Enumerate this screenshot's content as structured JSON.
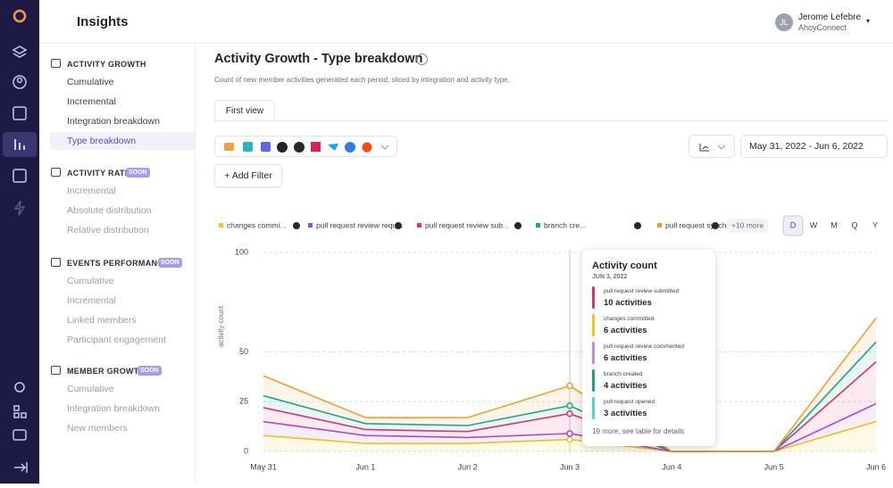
{
  "header": {
    "title": "Insights",
    "user": {
      "initials": "JL",
      "name": "Jerome Lefebre",
      "org": "AhoyConnect"
    }
  },
  "sidebar": {
    "sections": [
      {
        "title": "ACTIVITY GROWTH",
        "items": [
          "Cumulative",
          "Incremental",
          "Integration breakdown",
          "Type breakdown"
        ]
      },
      {
        "title": "ACTIVITY RATE",
        "badge": "SOON",
        "items": [
          "Incremental",
          "Absolute distribution",
          "Relative distribution"
        ]
      },
      {
        "title": "EVENTS PERFORMANCE",
        "badge": "SOON",
        "items": [
          "Cumulative",
          "Incremental",
          "Linked members",
          "Participant engagement"
        ]
      },
      {
        "title": "MEMBER GROWTH",
        "badge": "SOON",
        "items": [
          "Cumulative",
          "Integration breakdown",
          "New members"
        ]
      }
    ]
  },
  "page": {
    "title": "Activity Growth - Type breakdown",
    "subtitle": "Count of new member activities generated each period, sliced by integration and activity type.",
    "tab": "First view",
    "add_filter": "+ Add Filter",
    "date_range": "May 31, 2022 - Jun 6, 2022",
    "periods": [
      "D",
      "W",
      "M",
      "Q",
      "Y"
    ]
  },
  "chart_data": {
    "type": "line",
    "stacked": true,
    "y_label": "activity count",
    "more_label": "+10 more",
    "categories": [
      "May 31",
      "Jun 1",
      "Jun 2",
      "Jun 3",
      "Jun 4",
      "Jun 5",
      "Jun 6"
    ],
    "series": [
      {
        "name": "changes commi...",
        "color": "#f5c518",
        "values": [
          8,
          4,
          4,
          6,
          0,
          0,
          15
        ]
      },
      {
        "name": "pull request review requ...",
        "color": "#a64bd6",
        "values": [
          7,
          4,
          3,
          3,
          0,
          0,
          9
        ]
      },
      {
        "name": "pull request review sub...",
        "color": "#e0306e",
        "values": [
          7,
          3,
          3,
          10,
          0,
          0,
          21
        ]
      },
      {
        "name": "branch cre...",
        "color": "#17a589",
        "values": [
          6,
          3,
          3,
          4,
          0,
          0,
          10
        ]
      },
      {
        "name": "pull request synchro...",
        "color": "#f0a030",
        "values": [
          10,
          3,
          4,
          10,
          0,
          0,
          12
        ]
      }
    ],
    "ylim": [
      0,
      100
    ],
    "yticks": [
      0,
      25,
      50,
      100
    ],
    "grid": true
  },
  "tooltip": {
    "title": "Activity count",
    "date": "JUN 3, 2022",
    "items": [
      {
        "label": "pull request review submitted",
        "value": "10 activities",
        "color": "#e0306e"
      },
      {
        "label": "changes committed",
        "value": "6 activities",
        "color": "#f5c518"
      },
      {
        "label": "pull request review commented",
        "value": "6 activities",
        "color": "#c48be0"
      },
      {
        "label": "branch created",
        "value": "4 activities",
        "color": "#17a589"
      },
      {
        "label": "pull request opened",
        "value": "3 activities",
        "color": "#4fd1d9"
      }
    ],
    "footer": "19 more, see table for details"
  }
}
